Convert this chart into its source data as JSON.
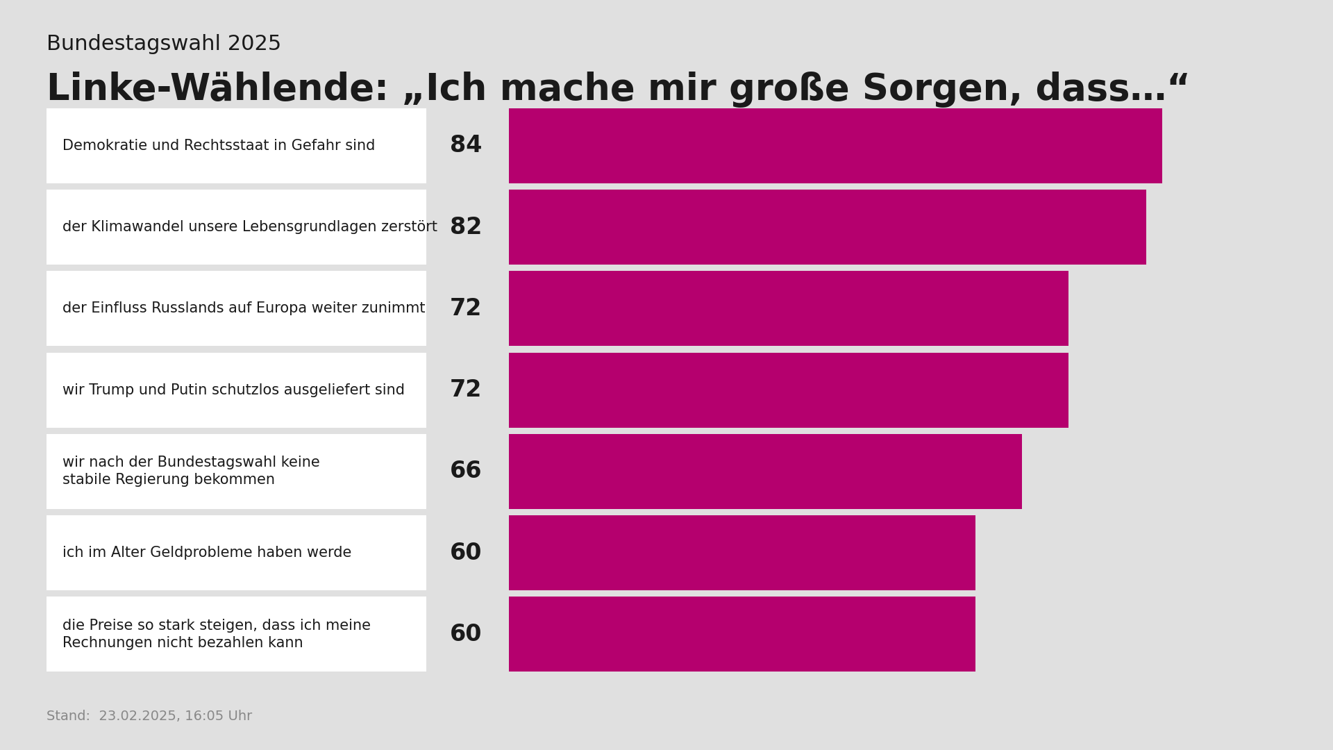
{
  "supertitle": "Bundestagswahl 2025",
  "title": "Linke-Wählende: „Ich mache mir große Sorgen, dass…“",
  "categories": [
    "Demokratie und Rechtsstaat in Gefahr sind",
    "der Klimawandel unsere Lebensgrundlagen zerstört",
    "der Einfluss Russlands auf Europa weiter zunimmt",
    "wir Trump und Putin schutzlos ausgeliefert sind",
    "wir nach der Bundestagswahl keine\nstabile Regierung bekommen",
    "ich im Alter Geldprobleme haben werde",
    "die Preise so stark steigen, dass ich meine\nRechnungen nicht bezahlen kann"
  ],
  "values": [
    84,
    82,
    72,
    72,
    66,
    60,
    60
  ],
  "bar_color": "#b5006e",
  "background_color": "#e0e0e0",
  "label_box_color": "#ffffff",
  "value_color": "#1a1a1a",
  "text_color": "#1a1a1a",
  "footer_text": "Stand:  23.02.2025, 16:05 Uhr",
  "footer_color": "#888888",
  "supertitle_fontsize": 22,
  "title_fontsize": 38,
  "category_fontsize": 15,
  "value_fontsize": 24,
  "footer_fontsize": 14,
  "bar_max": 100
}
